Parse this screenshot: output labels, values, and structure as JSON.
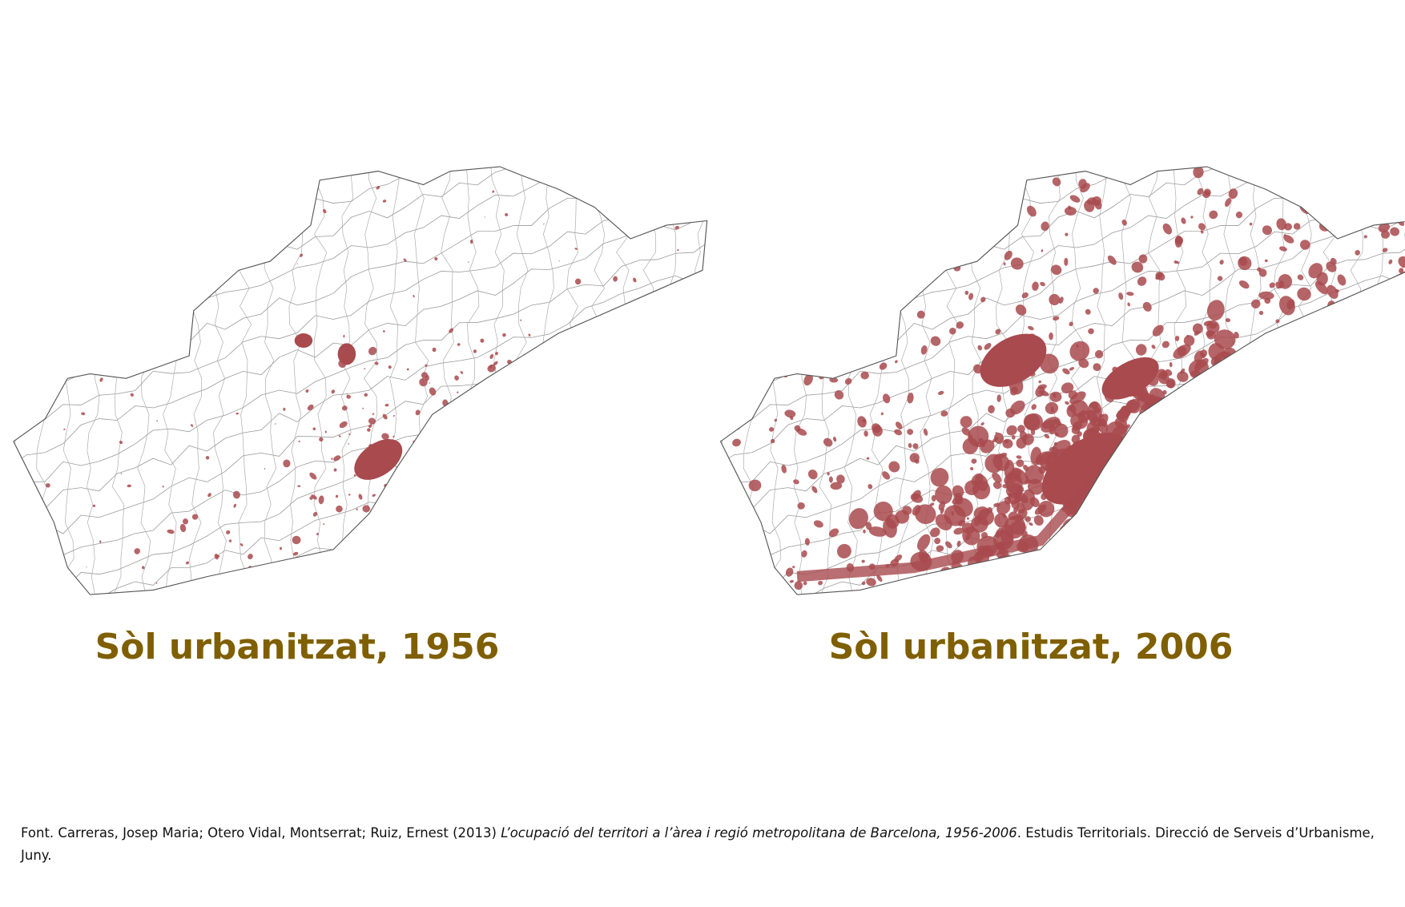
{
  "maps": [
    {
      "title": "Sòl urbanitzat, 1956"
    },
    {
      "title": "Sòl urbanitzat, 2006"
    }
  ],
  "source": {
    "prefix": "Font. Carreras, Josep Maria; Otero Vidal, Montserrat; Ruiz, Ernest (2013)",
    "title": "L’ocupació del territori a l’àrea i regió metropolitana de Barcelona, 1956-2006",
    "suffix": ". Estudis Territorials. Direcció de Serveis d’Urbanisme, Juny."
  }
}
